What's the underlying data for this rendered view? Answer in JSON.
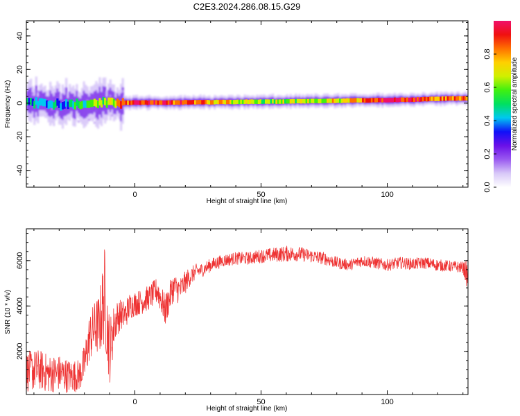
{
  "title": "C2E3.2024.286.08.15.G29",
  "chart_data": [
    {
      "type": "heatmap",
      "xlabel": "Height of straight line (km)",
      "ylabel": "Frequency (Hz)",
      "xlim": [
        -43,
        132
      ],
      "ylim": [
        -50,
        49
      ],
      "xticks": [
        0,
        50,
        100
      ],
      "xtick_labels": [
        "0",
        "50",
        "100"
      ],
      "yticks": [
        -40,
        -20,
        0,
        20,
        40
      ],
      "ytick_labels": [
        "-40",
        "-20",
        "0",
        "20",
        "40"
      ],
      "colorbar": {
        "label": "Normalized spectral amplitude",
        "range": [
          0,
          1
        ],
        "ticks": [
          0,
          0.2,
          0.4,
          0.6,
          0.8
        ],
        "tick_labels": [
          "0.0",
          "0.2",
          "0.4",
          "0.6",
          "0.8"
        ],
        "colors": [
          "#ffffff",
          "#d8c8f8",
          "#9a5af0",
          "#6a10e8",
          "#1010f8",
          "#00c8f0",
          "#00e060",
          "#40f010",
          "#d0f000",
          "#ffd000",
          "#ff7000",
          "#f01010",
          "#f0106a"
        ]
      },
      "band": {
        "x": [
          -43,
          -30,
          -20,
          -10,
          0,
          10,
          20,
          30,
          40,
          50,
          60,
          70,
          80,
          90,
          100,
          110,
          120,
          132
        ],
        "center_freq": [
          0.5,
          -1.0,
          0.0,
          0.3,
          0.3,
          0.4,
          0.5,
          0.6,
          0.8,
          0.9,
          1.0,
          1.2,
          1.4,
          1.7,
          1.9,
          2.1,
          2.6,
          3.0
        ],
        "peak_amplitude": [
          0.45,
          0.4,
          0.5,
          0.7,
          0.95,
          0.9,
          0.9,
          0.75,
          0.7,
          0.6,
          0.62,
          0.65,
          0.7,
          0.85,
          1.0,
          0.95,
          0.8,
          0.85
        ]
      }
    },
    {
      "type": "line",
      "xlabel": "Height of straight line (km)",
      "ylabel": "SNR (10 * v/v)",
      "xlim": [
        -43,
        132
      ],
      "ylim": [
        100,
        7400
      ],
      "xticks": [
        0,
        50,
        100
      ],
      "xtick_labels": [
        "0",
        "50",
        "100"
      ],
      "yticks": [
        2000,
        4000,
        6000
      ],
      "ytick_labels": [
        "2000",
        "4000",
        "6000"
      ],
      "color": "#ee3333",
      "series": [
        {
          "x": [
            -43,
            -38,
            -34,
            -30,
            -26,
            -22,
            -20,
            -18,
            -16,
            -14,
            -12,
            -10,
            -8,
            -6,
            -4,
            -2,
            0,
            3,
            6,
            9,
            12,
            15,
            18,
            21,
            24,
            27,
            30,
            35,
            40,
            45,
            50,
            55,
            60,
            65,
            70,
            75,
            80,
            85,
            90,
            95,
            100,
            105,
            110,
            115,
            120,
            125,
            130,
            132
          ],
          "y": [
            1100,
            1200,
            1000,
            1050,
            900,
            950,
            1400,
            2600,
            3000,
            3200,
            4500,
            2000,
            3300,
            3600,
            3600,
            4000,
            4100,
            4200,
            4400,
            4700,
            3800,
            4800,
            4700,
            5200,
            5500,
            5600,
            5800,
            6000,
            6100,
            6100,
            6200,
            6250,
            6300,
            6300,
            6200,
            6100,
            5900,
            5800,
            6000,
            5900,
            5800,
            5900,
            5850,
            5900,
            5800,
            5750,
            5700,
            5300
          ],
          "noise_amplitude": [
            900,
            900,
            850,
            800,
            750,
            700,
            900,
            1100,
            1200,
            1400,
            2200,
            1500,
            900,
            700,
            650,
            600,
            550,
            550,
            550,
            600,
            700,
            650,
            600,
            450,
            350,
            300,
            300,
            280,
            280,
            280,
            300,
            320,
            350,
            320,
            300,
            280,
            260,
            250,
            260,
            260,
            260,
            260,
            260,
            260,
            260,
            250,
            250,
            700
          ]
        }
      ]
    }
  ]
}
